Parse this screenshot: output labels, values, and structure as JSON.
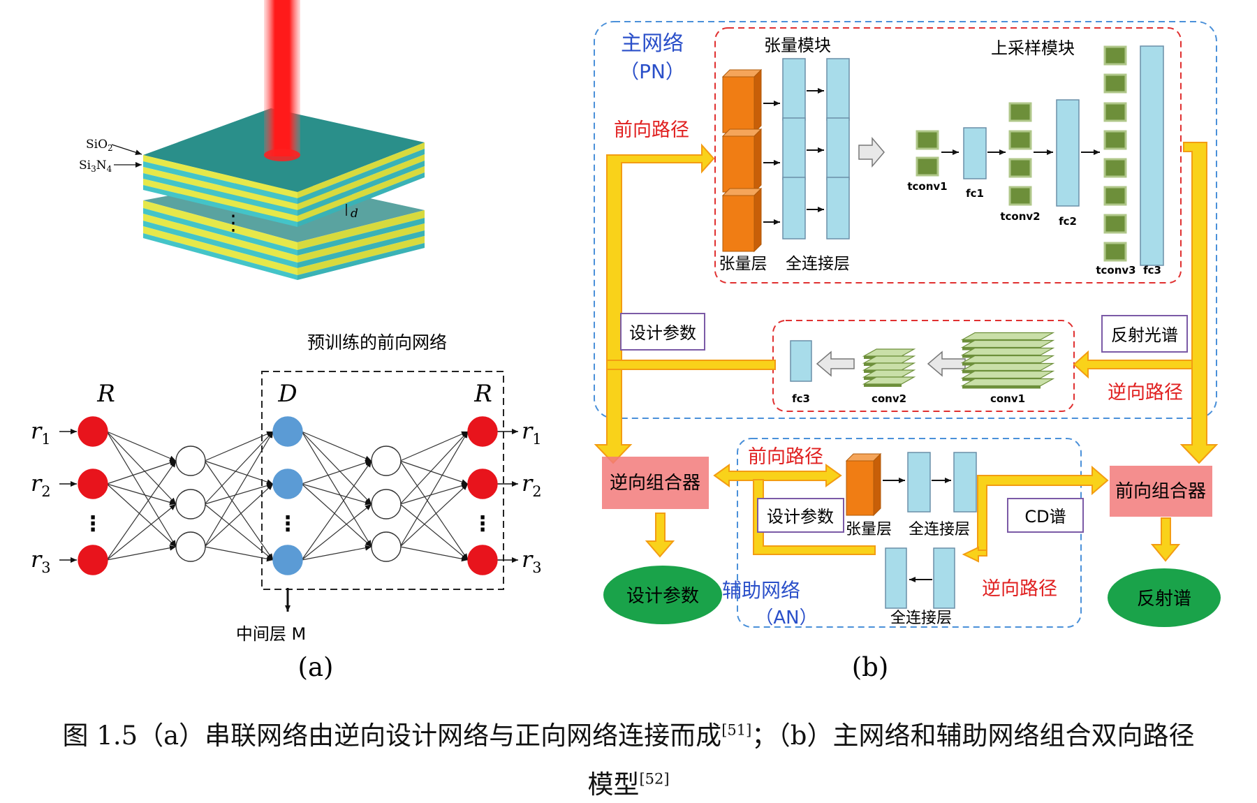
{
  "panel_a": {
    "layer_label_1": "SiO",
    "layer_label_1_sub": "2",
    "layer_label_2": "Si",
    "layer_label_2_sub1": "3",
    "layer_label_2_mid": "N",
    "layer_label_2_sub2": "4",
    "thickness_label": "d",
    "vdots": "⋮",
    "pretrained_title": "预训练的前向网络",
    "left_symbol": "R",
    "mid_symbol": "D",
    "right_symbol": "R",
    "inputs": [
      {
        "letter": "r",
        "sub": "1"
      },
      {
        "letter": "r",
        "sub": "2"
      },
      {
        "letter": "r",
        "sub": "3"
      }
    ],
    "outputs": [
      {
        "letter": "r",
        "sub": "1"
      },
      {
        "letter": "r",
        "sub": "2"
      },
      {
        "letter": "r",
        "sub": "3"
      }
    ],
    "middle_layer_label": "中间层 M",
    "panel_label": "(a)"
  },
  "panel_b": {
    "primary_net_label": "主网络",
    "primary_net_abbr": "（PN）",
    "tensor_module_label": "张量模块",
    "upsampling_module_label": "上采样模块",
    "forward_path_label": "前向路径",
    "tensor_layer_label": "张量层",
    "fc_layer_label": "全连接层",
    "tconv1": "tconv1",
    "fc1": "fc1",
    "tconv2": "tconv2",
    "fc2": "fc2",
    "tconv3": "tconv3",
    "fc3": "fc3",
    "design_params_label": "设计参数",
    "reflection_spectrum_label": "反射光谱",
    "reverse_path_label": "逆向路径",
    "conv1": "conv1",
    "conv2": "conv2",
    "inverse_combiner": "逆向组合器",
    "forward_combiner": "前向组合器",
    "aux_forward_path_label": "前向路径",
    "aux_design_params_label": "设计参数",
    "aux_tensor_layer_label": "张量层",
    "aux_fc_layer_label": "全连接层",
    "cd_spectrum_label": "CD谱",
    "aux_net_label": "辅助网络",
    "aux_net_abbr": "（AN）",
    "aux_reverse_path_label": "逆向路径",
    "aux_fc_layer_label_2": "全连接层",
    "output_design_params": "设计参数",
    "output_reflection": "反射谱",
    "panel_label": "(b)"
  },
  "caption": {
    "line1_prefix": "图 1.5（a）串联网络由逆向设计网络与正向网络连接而成",
    "ref1": "[51]",
    "line1_suffix": "；（b）主网络和辅助网络组合双向路径",
    "line2_prefix": "模型",
    "ref2": "[52]"
  },
  "colors": {
    "red_node": "#e8141c",
    "blue_node": "#5b9bd5",
    "orange_block": "#f07d14",
    "fc_block": "#a8dcea",
    "tconv_block": "#6d8f3a",
    "yellow_path": "#f9d21a",
    "dashed_blue": "#4a90d9",
    "dashed_red": "#e03030",
    "combiner": "#f27a7a",
    "green_ellipse": "#1aa34a",
    "blue_text": "#2a4fc9",
    "red_text": "#e02020"
  }
}
